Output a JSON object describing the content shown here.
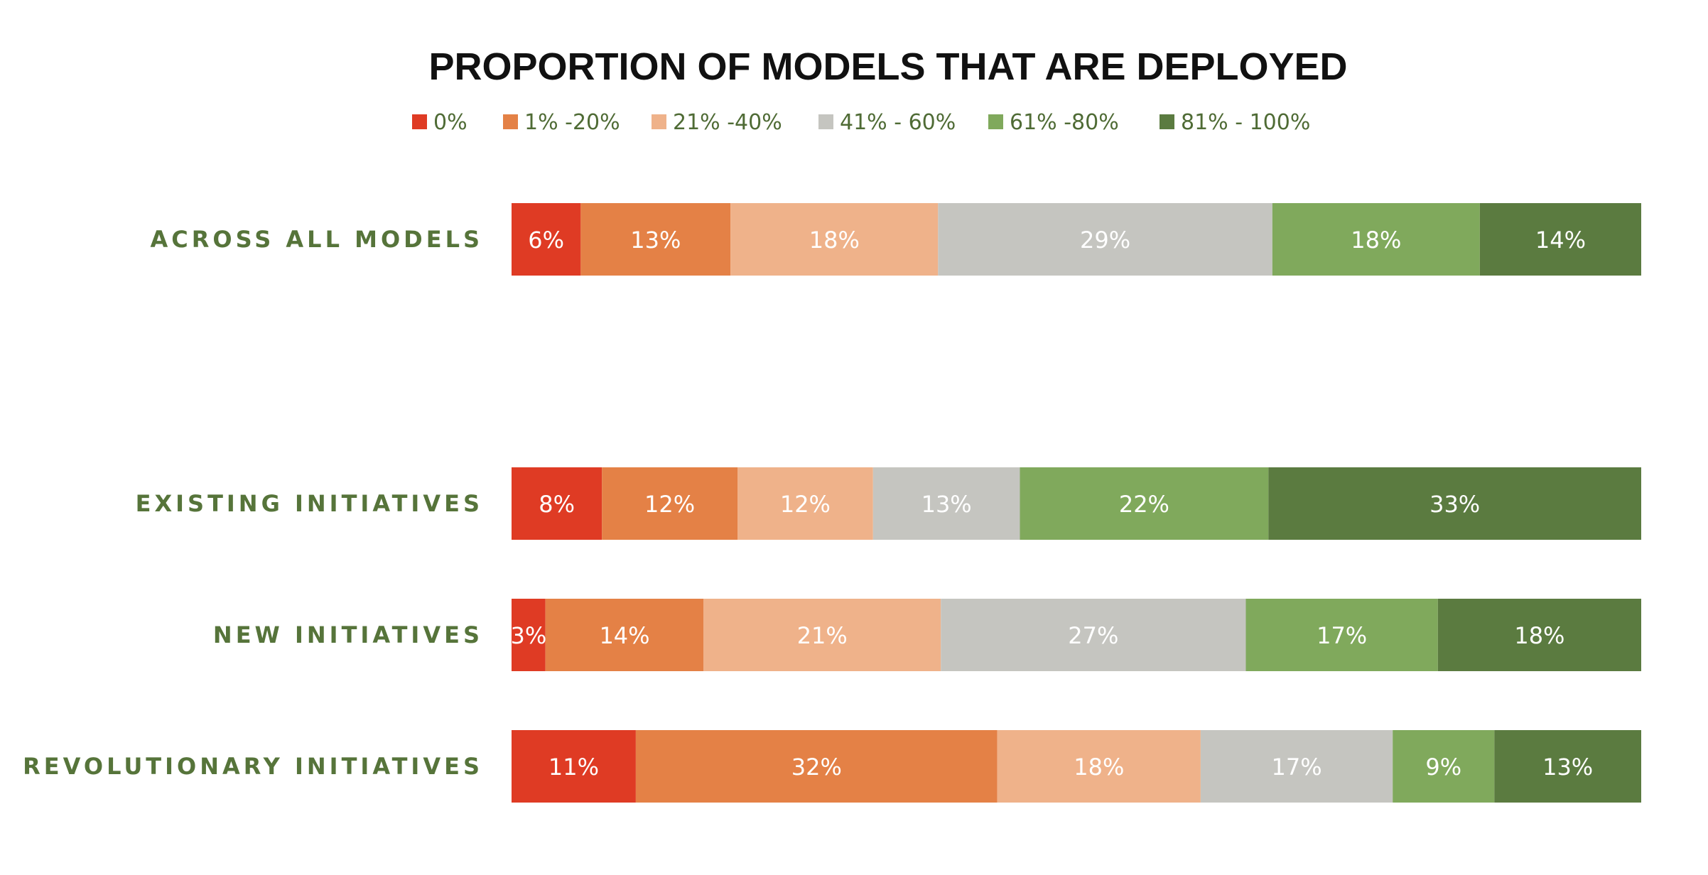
{
  "chart_data": {
    "type": "bar",
    "orientation": "horizontal",
    "stacked": true,
    "percent_stacked": true,
    "title": "PROPORTION OF MODELS THAT ARE DEPLOYED",
    "xlabel": "",
    "ylabel": "",
    "legend_position": "top",
    "grid": false,
    "xlim": [
      0,
      100
    ],
    "categories": [
      "ACROSS ALL MODELS",
      "EXISTING INITIATIVES",
      "NEW INITIATIVES",
      "REVOLUTIONARY INITIATIVES"
    ],
    "series": [
      {
        "name": "0%",
        "color": "#df3b24",
        "values": [
          6,
          8,
          3,
          11
        ],
        "labels": [
          "6%",
          "8%",
          "3%",
          "11%"
        ]
      },
      {
        "name": "1% -20%",
        "color": "#e48146",
        "values": [
          13,
          12,
          14,
          32
        ],
        "labels": [
          "13%",
          "12%",
          "14%",
          "32%"
        ]
      },
      {
        "name": "21% -40%",
        "color": "#efb28a",
        "values": [
          18,
          12,
          21,
          18
        ],
        "labels": [
          "18%",
          "12%",
          "21%",
          "18%"
        ]
      },
      {
        "name": "41% - 60%",
        "color": "#c5c5c0",
        "values": [
          29,
          13,
          27,
          17
        ],
        "labels": [
          "29%",
          "13%",
          "27%",
          "17%"
        ]
      },
      {
        "name": "61% -80%",
        "color": "#80a95c",
        "values": [
          18,
          22,
          17,
          9
        ],
        "labels": [
          "18%",
          "22%",
          "17%",
          "9%"
        ]
      },
      {
        "name": "81% - 100%",
        "color": "#5b7b40",
        "values": [
          14,
          33,
          18,
          13
        ],
        "labels": [
          "14%",
          "33%",
          "18%",
          "13%"
        ]
      }
    ]
  }
}
